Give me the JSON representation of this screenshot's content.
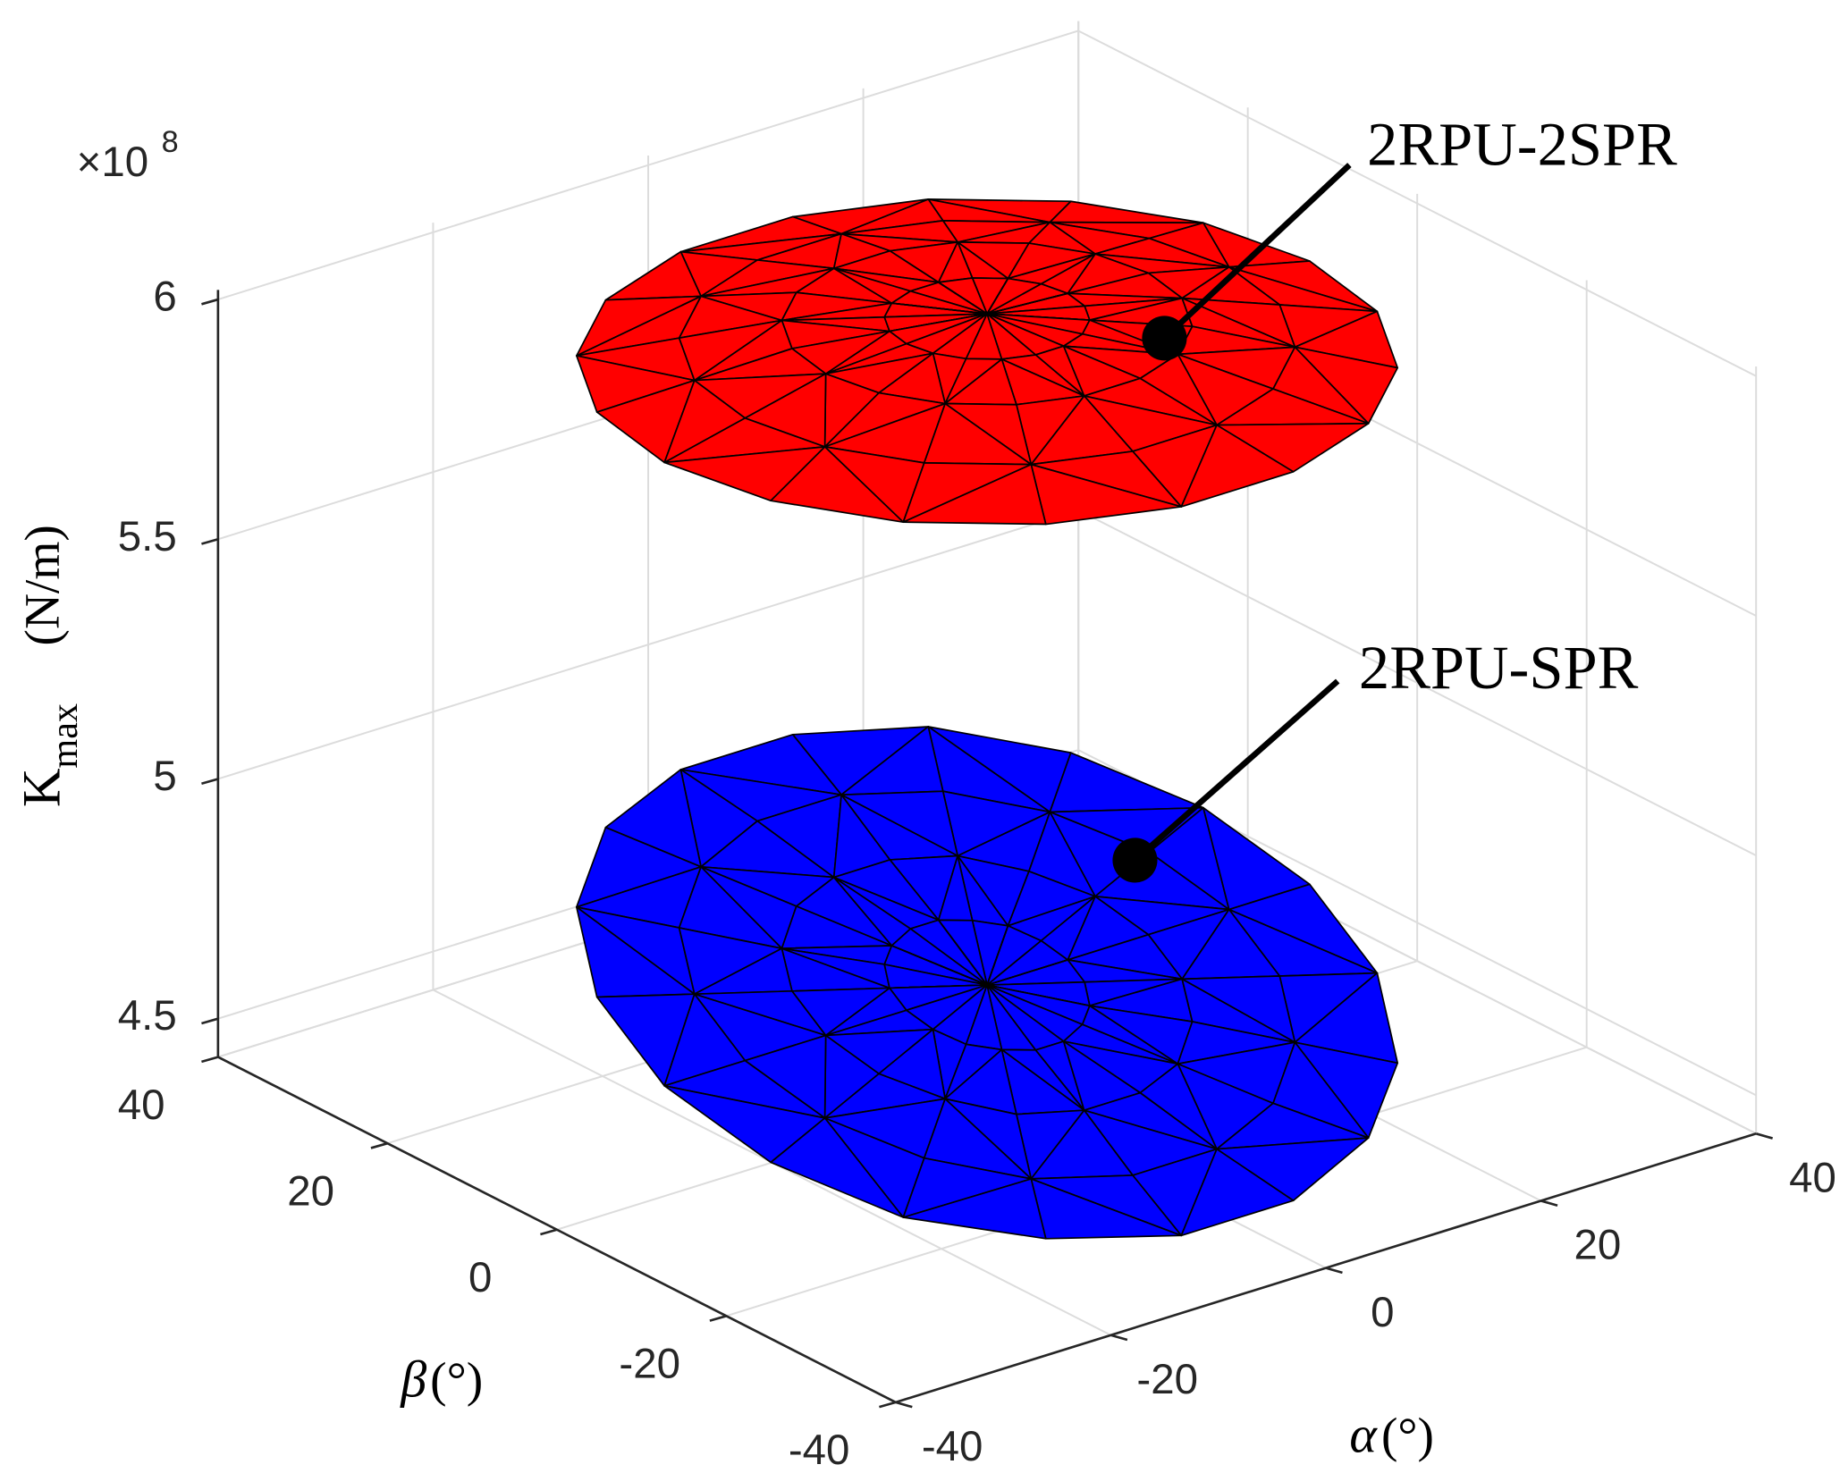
{
  "chart_data": {
    "type": "surface3d",
    "multiplier": {
      "base": "×10",
      "exponent": "8"
    },
    "xlabel": {
      "symbol": "α",
      "unit": "(°)"
    },
    "ylabel": {
      "symbol": "β",
      "unit": "(°)"
    },
    "zlabel": {
      "main": "K",
      "sub": "max",
      "unit": "(N/m)"
    },
    "xlim": [
      -40,
      40
    ],
    "xticks": [
      -40,
      -20,
      0,
      20,
      40
    ],
    "ylim": [
      -40,
      40
    ],
    "yticks": [
      -40,
      -20,
      0,
      20,
      40
    ],
    "zlim": [
      4.42,
      6.02
    ],
    "zticks": [
      4.5,
      5,
      5.5,
      6
    ],
    "grid": true,
    "radius": [
      0,
      7.5,
      15,
      22.5,
      30
    ],
    "angle": [
      0,
      20,
      40,
      60,
      80,
      100,
      120,
      140,
      160,
      180,
      200,
      220,
      240,
      260,
      280,
      300,
      320,
      340
    ],
    "series": [
      {
        "name": "2RPU-2SPR",
        "color": "#ff0000",
        "values": [
          [
            6.05,
            6.05,
            6.05,
            6.05,
            6.05,
            6.05,
            6.05,
            6.05,
            6.05,
            6.05,
            6.05,
            6.05,
            6.05,
            6.05,
            6.05,
            6.05,
            6.05,
            6.05
          ],
          [
            6.04,
            6.04,
            6.04,
            6.04,
            6.04,
            6.04,
            6.04,
            6.04,
            6.04,
            6.04,
            6.04,
            6.04,
            6.04,
            6.04,
            6.04,
            6.04,
            6.04,
            6.04
          ],
          [
            6.03,
            6.03,
            6.03,
            6.03,
            6.03,
            6.03,
            6.03,
            6.03,
            6.03,
            6.03,
            6.03,
            6.03,
            6.03,
            6.03,
            6.03,
            6.03,
            6.03,
            6.03
          ],
          [
            5.99,
            5.99,
            5.99,
            5.99,
            5.99,
            5.99,
            5.99,
            5.99,
            5.99,
            5.99,
            5.99,
            5.99,
            5.99,
            5.99,
            5.99,
            5.99,
            5.99,
            5.99
          ],
          [
            5.95,
            5.95,
            5.95,
            5.95,
            5.95,
            5.95,
            5.95,
            5.95,
            5.95,
            5.95,
            5.95,
            5.95,
            5.95,
            5.95,
            5.95,
            5.95,
            5.95,
            5.95
          ]
        ]
      },
      {
        "name": "2RPU-SPR",
        "color": "#0000ff",
        "values": [
          [
            4.65,
            4.65,
            4.65,
            4.65,
            4.65,
            4.65,
            4.65,
            4.65,
            4.65,
            4.65,
            4.65,
            4.65,
            4.65,
            4.65,
            4.65,
            4.65,
            4.65,
            4.65
          ],
          [
            4.65,
            4.67,
            4.69,
            4.7,
            4.71,
            4.71,
            4.7,
            4.69,
            4.67,
            4.65,
            4.63,
            4.61,
            4.6,
            4.59,
            4.59,
            4.6,
            4.61,
            4.63
          ],
          [
            4.65,
            4.69,
            4.72,
            4.75,
            4.76,
            4.76,
            4.75,
            4.72,
            4.69,
            4.65,
            4.61,
            4.58,
            4.55,
            4.54,
            4.54,
            4.55,
            4.58,
            4.61
          ],
          [
            4.65,
            4.71,
            4.76,
            4.8,
            4.82,
            4.82,
            4.8,
            4.76,
            4.71,
            4.65,
            4.59,
            4.54,
            4.5,
            4.48,
            4.48,
            4.5,
            4.54,
            4.59
          ],
          [
            4.65,
            4.73,
            4.8,
            4.85,
            4.87,
            4.87,
            4.85,
            4.8,
            4.73,
            4.65,
            4.57,
            4.5,
            4.46,
            4.43,
            4.43,
            4.46,
            4.5,
            4.57
          ]
        ]
      }
    ]
  }
}
